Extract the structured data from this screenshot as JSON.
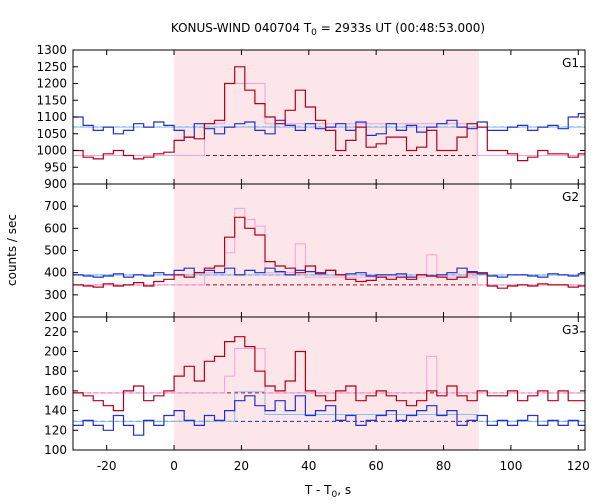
{
  "title_main": "KONUS-WIND 040704 T",
  "title_sub": "0",
  "title_rest": " = 2933s UT (00:48:53.000)",
  "ylabel": "counts / sec",
  "xlabel_main": "T - T",
  "xlabel_sub": "0",
  "xlabel_rest": ", s",
  "colors": {
    "dark_red": "#b00018",
    "pink": "#f8a0d8",
    "dark_blue": "#2030c8",
    "light_blue": "#80c0f0",
    "interval_fill": "#fde6ea"
  },
  "chart_data": {
    "type": "line",
    "style": "step histogram, 3 stacked panels sharing x axis",
    "x_ticks": [
      -20,
      0,
      20,
      40,
      60,
      80,
      100,
      120
    ],
    "xlim": [
      -30,
      122
    ],
    "shaded_interval": [
      0,
      90.5
    ],
    "panels": [
      {
        "name": "G1",
        "ylim": [
          900,
          1300
        ],
        "yticks": [
          900,
          950,
          1000,
          1050,
          1100,
          1150,
          1200,
          1250,
          1300
        ],
        "bin_edges": [
          -30,
          -27,
          -24,
          -21,
          -18,
          -15,
          -12,
          -9,
          -6,
          -3,
          0,
          3,
          6,
          9,
          12,
          15,
          18,
          21,
          24,
          27,
          30,
          33,
          36,
          39,
          42,
          45,
          48,
          51,
          54,
          57,
          60,
          63,
          66,
          69,
          72,
          75,
          78,
          81,
          84,
          87,
          90,
          93,
          96,
          99,
          102,
          105,
          108,
          111,
          114,
          117,
          120,
          122
        ],
        "series": [
          {
            "name": "",
            "color_key": "dark_red",
            "values": [
              1000,
              980,
              975,
              990,
              1000,
              985,
              975,
              980,
              990,
              995,
              1030,
              1040,
              1035,
              1080,
              1090,
              1200,
              1250,
              1180,
              1140,
              1100,
              1080,
              1120,
              1180,
              1130,
              1090,
              1060,
              1000,
              1030,
              1070,
              1010,
              1020,
              1040,
              1040,
              1000,
              1010,
              1060,
              1000,
              1000,
              1040,
              1080,
              1070,
              1000,
              1000,
              990,
              970,
              980,
              1000,
              990,
              990,
              980,
              990
            ]
          },
          {
            "name": "",
            "color_key": "pink",
            "values": [
              985,
              985,
              985,
              985,
              985,
              985,
              985,
              985,
              985,
              985,
              985,
              985,
              985,
              1080,
              1080,
              1200,
              1200,
              1200,
              1200,
              1080,
              1080,
              1080,
              1080,
              1080,
              1080,
              1080,
              1080,
              1080,
              1080,
              1080,
              1080,
              1080,
              1080,
              1080,
              1080,
              1080,
              1080,
              1080,
              1080,
              1080,
              985,
              985,
              985,
              985,
              985,
              985,
              985,
              985,
              985,
              985,
              985
            ]
          },
          {
            "name": "",
            "color_key": "dark_blue",
            "values": [
              1100,
              1075,
              1060,
              1070,
              1050,
              1060,
              1080,
              1070,
              1085,
              1075,
              1060,
              1040,
              1080,
              1065,
              1050,
              1070,
              1080,
              1085,
              1060,
              1050,
              1090,
              1075,
              1060,
              1080,
              1065,
              1070,
              1080,
              1060,
              1085,
              1045,
              1050,
              1080,
              1060,
              1075,
              1055,
              1070,
              1080,
              1090,
              1070,
              1065,
              1085,
              1060,
              1060,
              1070,
              1075,
              1060,
              1070,
              1075,
              1065,
              1100,
              1110
            ]
          },
          {
            "name": "",
            "color_key": "light_blue",
            "values": [
              1070,
              1070,
              1070,
              1070,
              1070,
              1070,
              1070,
              1070,
              1070,
              1070,
              1070,
              1070,
              1070,
              1070,
              1070,
              1070,
              1070,
              1070,
              1070,
              1070,
              1070,
              1070,
              1070,
              1070,
              1070,
              1070,
              1070,
              1070,
              1070,
              1070,
              1070,
              1070,
              1070,
              1070,
              1070,
              1070,
              1070,
              1070,
              1070,
              1070,
              1070,
              1070,
              1070,
              1070,
              1070,
              1070,
              1070,
              1070,
              1070,
              1070,
              1070
            ]
          }
        ],
        "hlines": [
          {
            "color_key": "dark_red",
            "value": 985
          },
          {
            "color_key": "dark_blue",
            "value": 1070
          }
        ]
      },
      {
        "name": "G2",
        "ylim": [
          200,
          800
        ],
        "yticks": [
          200,
          300,
          400,
          500,
          600,
          700
        ],
        "bin_edges": [
          -30,
          -27,
          -24,
          -21,
          -18,
          -15,
          -12,
          -9,
          -6,
          -3,
          0,
          3,
          6,
          9,
          12,
          15,
          18,
          21,
          24,
          27,
          30,
          33,
          36,
          39,
          42,
          45,
          48,
          51,
          54,
          57,
          60,
          63,
          66,
          69,
          72,
          75,
          78,
          81,
          84,
          87,
          90,
          93,
          96,
          99,
          102,
          105,
          108,
          111,
          114,
          117,
          120,
          122
        ],
        "series": [
          {
            "name": "",
            "color_key": "dark_red",
            "values": [
              345,
              340,
              335,
              350,
              340,
              345,
              355,
              340,
              360,
              370,
              390,
              380,
              400,
              420,
              430,
              560,
              650,
              600,
              570,
              450,
              430,
              420,
              400,
              430,
              400,
              410,
              390,
              370,
              360,
              365,
              380,
              370,
              380,
              370,
              390,
              385,
              380,
              370,
              380,
              400,
              400,
              340,
              330,
              340,
              345,
              340,
              350,
              345,
              345,
              335,
              340
            ]
          },
          {
            "name": "",
            "color_key": "pink",
            "values": [
              345,
              345,
              345,
              345,
              345,
              345,
              345,
              345,
              345,
              345,
              345,
              345,
              345,
              400,
              400,
              490,
              690,
              640,
              610,
              400,
              400,
              400,
              530,
              380,
              380,
              380,
              380,
              380,
              380,
              380,
              380,
              380,
              380,
              380,
              380,
              480,
              380,
              380,
              380,
              380,
              345,
              345,
              345,
              345,
              345,
              345,
              345,
              345,
              345,
              345,
              345
            ]
          },
          {
            "name": "",
            "color_key": "dark_blue",
            "values": [
              390,
              385,
              380,
              385,
              395,
              380,
              390,
              385,
              400,
              390,
              410,
              420,
              400,
              410,
              400,
              420,
              390,
              410,
              400,
              420,
              405,
              390,
              410,
              405,
              395,
              410,
              390,
              395,
              400,
              385,
              390,
              390,
              395,
              380,
              390,
              385,
              390,
              400,
              420,
              405,
              395,
              385,
              380,
              390,
              390,
              385,
              380,
              395,
              390,
              385,
              395
            ]
          },
          {
            "name": "",
            "color_key": "light_blue",
            "values": [
              390,
              390,
              390,
              390,
              390,
              390,
              390,
              390,
              390,
              390,
              390,
              390,
              390,
              390,
              390,
              390,
              390,
              390,
              390,
              390,
              390,
              390,
              390,
              390,
              390,
              390,
              390,
              390,
              390,
              390,
              390,
              390,
              390,
              390,
              390,
              390,
              390,
              390,
              390,
              390,
              390,
              390,
              390,
              390,
              390,
              390,
              390,
              390,
              390,
              390,
              390
            ]
          }
        ],
        "hlines": [
          {
            "color_key": "dark_red",
            "value": 345
          },
          {
            "color_key": "dark_blue",
            "value": 390
          }
        ]
      },
      {
        "name": "G3",
        "ylim": [
          100,
          235
        ],
        "yticks": [
          100,
          120,
          140,
          160,
          180,
          200,
          220
        ],
        "bin_edges": [
          -30,
          -27,
          -24,
          -21,
          -18,
          -15,
          -12,
          -9,
          -6,
          -3,
          0,
          3,
          6,
          9,
          12,
          15,
          18,
          21,
          24,
          27,
          30,
          33,
          36,
          39,
          42,
          45,
          48,
          51,
          54,
          57,
          60,
          63,
          66,
          69,
          72,
          75,
          78,
          81,
          84,
          87,
          90,
          93,
          96,
          99,
          102,
          105,
          108,
          111,
          114,
          117,
          120,
          122
        ],
        "series": [
          {
            "name": "",
            "color_key": "dark_red",
            "values": [
              158,
              155,
              150,
              145,
              140,
              160,
              165,
              150,
              155,
              160,
              175,
              185,
              170,
              190,
              195,
              210,
              215,
              205,
              180,
              165,
              160,
              170,
              200,
              160,
              155,
              150,
              160,
              165,
              150,
              155,
              160,
              155,
              150,
              145,
              150,
              160,
              155,
              165,
              155,
              150,
              160,
              155,
              155,
              160,
              150,
              155,
              160,
              150,
              160,
              150,
              150
            ]
          },
          {
            "name": "",
            "color_key": "pink",
            "values": [
              158,
              158,
              158,
              158,
              158,
              158,
              158,
              158,
              158,
              158,
              158,
              158,
              158,
              158,
              158,
              175,
              203,
              203,
              203,
              158,
              158,
              158,
              158,
              158,
              158,
              158,
              158,
              158,
              158,
              158,
              158,
              158,
              158,
              158,
              158,
              195,
              158,
              158,
              158,
              158,
              158,
              158,
              158,
              158,
              158,
              158,
              158,
              158,
              158,
              158,
              158
            ]
          },
          {
            "name": "",
            "color_key": "dark_blue",
            "values": [
              125,
              130,
              125,
              120,
              135,
              125,
              115,
              130,
              125,
              135,
              140,
              130,
              125,
              135,
              130,
              140,
              150,
              155,
              145,
              140,
              150,
              140,
              155,
              135,
              140,
              145,
              130,
              135,
              125,
              130,
              135,
              140,
              130,
              135,
              140,
              145,
              135,
              140,
              125,
              130,
              135,
              125,
              130,
              125,
              130,
              135,
              125,
              130,
              125,
              130,
              125
            ]
          },
          {
            "name": "",
            "color_key": "light_blue",
            "values": [
              129,
              129,
              129,
              129,
              129,
              129,
              129,
              129,
              129,
              129,
              129,
              129,
              129,
              129,
              129,
              129,
              159,
              159,
              159,
              136,
              136,
              136,
              136,
              136,
              136,
              136,
              136,
              136,
              136,
              136,
              136,
              136,
              136,
              136,
              136,
              136,
              136,
              136,
              136,
              136,
              129,
              129,
              129,
              129,
              129,
              129,
              129,
              129,
              129,
              129,
              129
            ]
          }
        ],
        "hlines": [
          {
            "color_key": "dark_red",
            "value": 158
          },
          {
            "color_key": "dark_blue",
            "value": 129
          }
        ]
      }
    ]
  }
}
